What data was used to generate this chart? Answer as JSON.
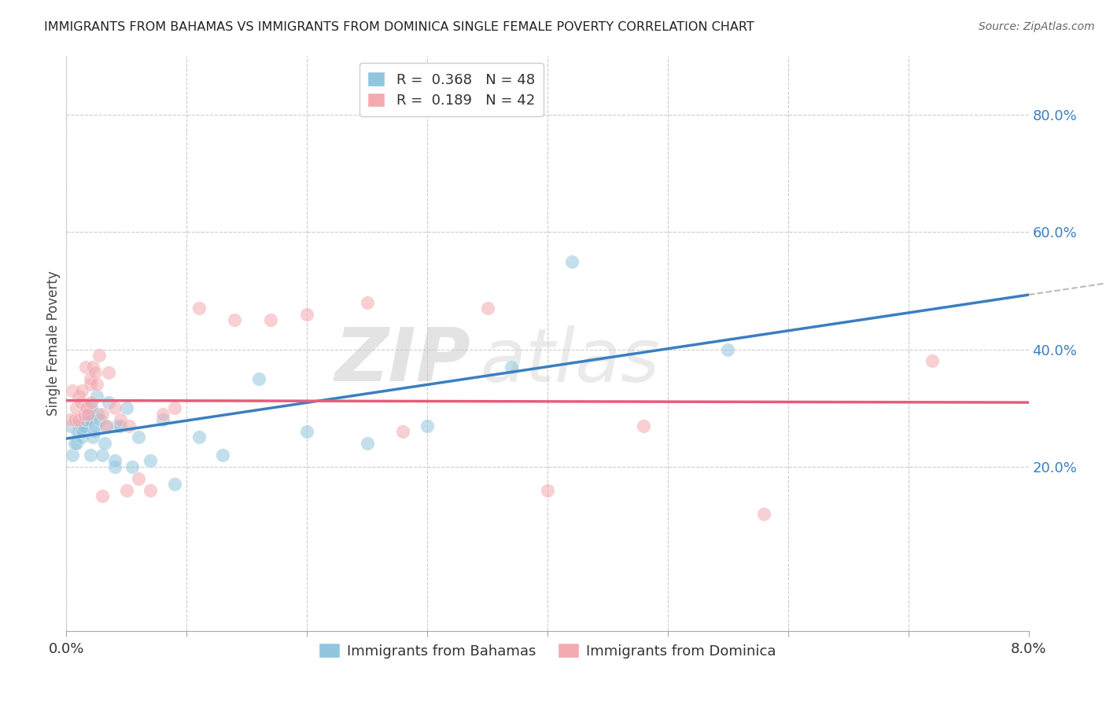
{
  "title": "IMMIGRANTS FROM BAHAMAS VS IMMIGRANTS FROM DOMINICA SINGLE FEMALE POVERTY CORRELATION CHART",
  "source": "Source: ZipAtlas.com",
  "ylabel": "Single Female Poverty",
  "legend_blue_R": "0.368",
  "legend_blue_N": "48",
  "legend_pink_R": "0.189",
  "legend_pink_N": "42",
  "legend_blue_label": "Immigrants from Bahamas",
  "legend_pink_label": "Immigrants from Dominica",
  "blue_color": "#92c5de",
  "pink_color": "#f4a9b0",
  "trend_blue_color": "#3a7fc1",
  "trend_pink_color": "#e85c7a",
  "xlim": [
    0.0,
    0.08
  ],
  "ylim": [
    -0.08,
    0.9
  ],
  "ytick_vals": [
    0.2,
    0.4,
    0.6,
    0.8
  ],
  "xtick_show": [
    0.0,
    0.08
  ],
  "blue_x": [
    0.0003,
    0.0005,
    0.0007,
    0.0008,
    0.0009,
    0.001,
    0.001,
    0.0012,
    0.0013,
    0.0013,
    0.0014,
    0.0015,
    0.0016,
    0.0017,
    0.0018,
    0.0019,
    0.002,
    0.002,
    0.0021,
    0.0022,
    0.0023,
    0.0024,
    0.0025,
    0.0026,
    0.0028,
    0.003,
    0.0032,
    0.0033,
    0.0035,
    0.004,
    0.004,
    0.0042,
    0.0045,
    0.005,
    0.0055,
    0.006,
    0.007,
    0.008,
    0.009,
    0.011,
    0.013,
    0.016,
    0.02,
    0.025,
    0.03,
    0.037,
    0.042,
    0.055
  ],
  "blue_y": [
    0.27,
    0.22,
    0.24,
    0.24,
    0.26,
    0.26,
    0.27,
    0.27,
    0.25,
    0.26,
    0.26,
    0.27,
    0.28,
    0.28,
    0.29,
    0.3,
    0.22,
    0.28,
    0.3,
    0.25,
    0.26,
    0.27,
    0.32,
    0.29,
    0.28,
    0.22,
    0.24,
    0.27,
    0.31,
    0.2,
    0.21,
    0.27,
    0.27,
    0.3,
    0.2,
    0.25,
    0.21,
    0.28,
    0.17,
    0.25,
    0.22,
    0.35,
    0.26,
    0.24,
    0.27,
    0.37,
    0.55,
    0.4
  ],
  "pink_x": [
    0.0003,
    0.0005,
    0.0007,
    0.0008,
    0.001,
    0.001,
    0.0012,
    0.0013,
    0.0015,
    0.0016,
    0.0017,
    0.0018,
    0.002,
    0.002,
    0.0021,
    0.0022,
    0.0024,
    0.0025,
    0.0027,
    0.003,
    0.003,
    0.0033,
    0.0035,
    0.004,
    0.0045,
    0.005,
    0.0052,
    0.006,
    0.007,
    0.008,
    0.009,
    0.011,
    0.014,
    0.017,
    0.02,
    0.025,
    0.028,
    0.035,
    0.04,
    0.048,
    0.058,
    0.072
  ],
  "pink_y": [
    0.28,
    0.33,
    0.28,
    0.3,
    0.28,
    0.32,
    0.31,
    0.33,
    0.29,
    0.37,
    0.3,
    0.29,
    0.34,
    0.35,
    0.31,
    0.37,
    0.36,
    0.34,
    0.39,
    0.15,
    0.29,
    0.27,
    0.36,
    0.3,
    0.28,
    0.16,
    0.27,
    0.18,
    0.16,
    0.29,
    0.3,
    0.47,
    0.45,
    0.45,
    0.46,
    0.48,
    0.26,
    0.47,
    0.16,
    0.27,
    0.12,
    0.38
  ]
}
